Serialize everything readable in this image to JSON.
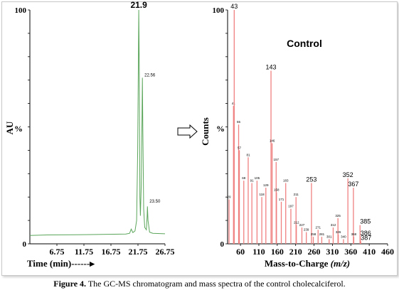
{
  "caption": {
    "label": "Figure 4.",
    "text": " The GC-MS chromatogram and mass spectra of the control cholecalciferol."
  },
  "chart_data": [
    {
      "type": "line",
      "ylabel": "AU",
      "ylabel_unit": "%",
      "xlabel": "Time (min)------▸",
      "xlim": [
        1.75,
        26.75
      ],
      "ylim": [
        0,
        100
      ],
      "x_ticks": [
        "6.75",
        "11.75",
        "16.75",
        "21.75",
        "26.75"
      ],
      "y_ticks": [
        "0",
        "100"
      ],
      "color": "#5aa55a",
      "peak_labels": [
        {
          "x": 21.9,
          "y": 100,
          "text": "21.9"
        },
        {
          "x": 22.56,
          "y": 71,
          "text": "22.56"
        },
        {
          "x": 23.5,
          "y": 17,
          "text": "23.50"
        }
      ],
      "points": [
        [
          1.75,
          3.6
        ],
        [
          5,
          3.8
        ],
        [
          10,
          3.9
        ],
        [
          15,
          4.0
        ],
        [
          19.5,
          4.2
        ],
        [
          20.2,
          4.5
        ],
        [
          20.5,
          6.3
        ],
        [
          20.8,
          4.8
        ],
        [
          21.2,
          5.5
        ],
        [
          21.5,
          10
        ],
        [
          21.7,
          40
        ],
        [
          21.82,
          75
        ],
        [
          21.9,
          100
        ],
        [
          22.0,
          72
        ],
        [
          22.1,
          20
        ],
        [
          22.2,
          12
        ],
        [
          22.35,
          25
        ],
        [
          22.5,
          55
        ],
        [
          22.56,
          71
        ],
        [
          22.65,
          50
        ],
        [
          22.8,
          15
        ],
        [
          23.0,
          7
        ],
        [
          23.3,
          6
        ],
        [
          23.45,
          12
        ],
        [
          23.5,
          16
        ],
        [
          23.6,
          10
        ],
        [
          23.9,
          5
        ],
        [
          24.5,
          4.5
        ],
        [
          26.75,
          4.3
        ]
      ]
    },
    {
      "type": "bar",
      "title": "Control",
      "ylabel": "Counts",
      "ylabel_unit": "%",
      "xlabel": "Mass-to-Charge",
      "xlabel_unit": "(m/z)",
      "xlim": [
        25,
        460
      ],
      "ylim": [
        0,
        100
      ],
      "x_ticks": [
        "60",
        "110",
        "160",
        "210",
        "260",
        "310",
        "360",
        "410",
        "460"
      ],
      "y_ticks": [
        "0",
        "100"
      ],
      "color": "#f08080",
      "peaks": [
        {
          "mz": 29,
          "i": 19,
          "label": "29"
        },
        {
          "mz": 41,
          "i": 59,
          "label": "41"
        },
        {
          "mz": 43,
          "i": 100,
          "label": "43"
        },
        {
          "mz": 55,
          "i": 51,
          "label": "55"
        },
        {
          "mz": 57,
          "i": 40,
          "label": "57"
        },
        {
          "mz": 69,
          "i": 27,
          "label": "69"
        },
        {
          "mz": 81,
          "i": 37,
          "label": "81"
        },
        {
          "mz": 91,
          "i": 26,
          "label": "91"
        },
        {
          "mz": 105,
          "i": 27,
          "label": "105"
        },
        {
          "mz": 118,
          "i": 20,
          "label": "118"
        },
        {
          "mz": 129,
          "i": 24,
          "label": "129"
        },
        {
          "mz": 143,
          "i": 74,
          "label": "143"
        },
        {
          "mz": 146,
          "i": 43,
          "label": "146"
        },
        {
          "mz": 157,
          "i": 35,
          "label": "157"
        },
        {
          "mz": 158,
          "i": 22,
          "label": "158"
        },
        {
          "mz": 171,
          "i": 18,
          "label": "171"
        },
        {
          "mz": 183,
          "i": 26,
          "label": "183"
        },
        {
          "mz": 197,
          "i": 15,
          "label": "197"
        },
        {
          "mz": 211,
          "i": 20,
          "label": "211"
        },
        {
          "mz": 212,
          "i": 8,
          "label": "212"
        },
        {
          "mz": 227,
          "i": 7,
          "label": "227"
        },
        {
          "mz": 239,
          "i": 5,
          "label": "239"
        },
        {
          "mz": 253,
          "i": 26,
          "label": "253"
        },
        {
          "mz": 258,
          "i": 3,
          "label": "258"
        },
        {
          "mz": 271,
          "i": 6,
          "label": "271"
        },
        {
          "mz": 281,
          "i": 3,
          "label": "281"
        },
        {
          "mz": 301,
          "i": 2,
          "label": "301"
        },
        {
          "mz": 312,
          "i": 7,
          "label": "312"
        },
        {
          "mz": 325,
          "i": 11,
          "label": "325"
        },
        {
          "mz": 326,
          "i": 4,
          "label": "326"
        },
        {
          "mz": 340,
          "i": 2,
          "label": "340"
        },
        {
          "mz": 352,
          "i": 28,
          "label": "352"
        },
        {
          "mz": 367,
          "i": 24,
          "label": "367"
        },
        {
          "mz": 368,
          "i": 3,
          "label": "368"
        },
        {
          "mz": 385,
          "i": 8,
          "label": "385"
        },
        {
          "mz": 386,
          "i": 3,
          "label": "386"
        },
        {
          "mz": 387,
          "i": 1,
          "label": "387"
        }
      ]
    }
  ]
}
